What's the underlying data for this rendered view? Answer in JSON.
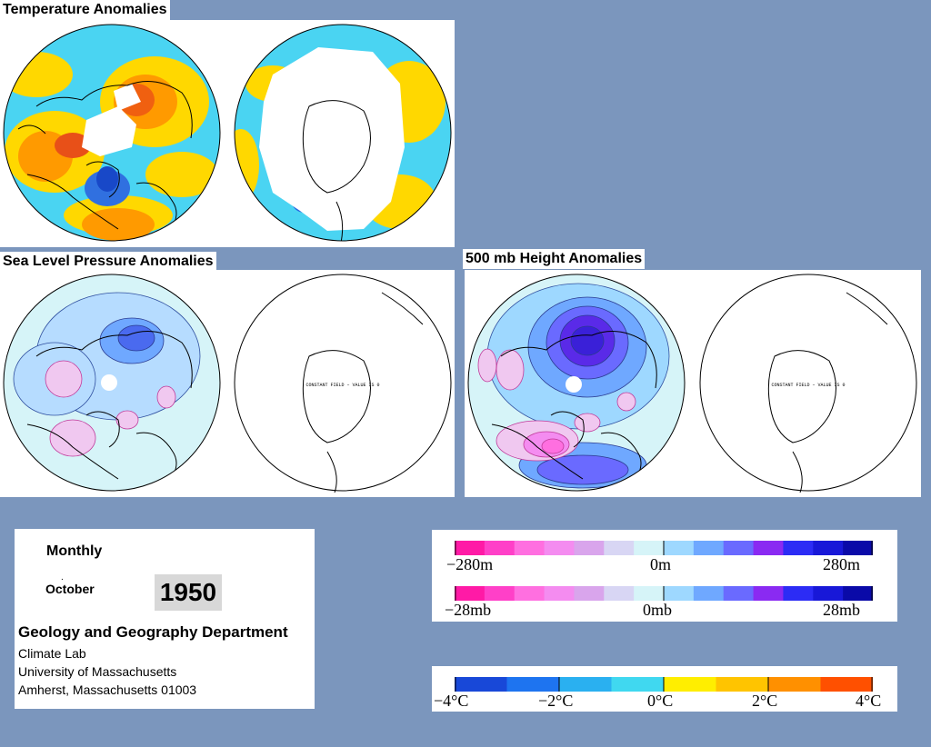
{
  "sections": {
    "temperature": "Temperature Anomalies",
    "slp": "Sea Level Pressure Anomalies",
    "height": "500 mb Height Anomalies"
  },
  "maps": {
    "constant_field_note": "CONSTANT FIELD – VALUE IS 0"
  },
  "info": {
    "period": "Monthly",
    "month": "October",
    "year": "1950",
    "department": "Geology and Geography Department",
    "lab": "Climate Lab",
    "university": "University of Massachusetts",
    "address": "Amherst, Massachusetts 01003"
  },
  "legend_height": {
    "colors": [
      "#ff1aa6",
      "#ff40c8",
      "#ff6fe0",
      "#f48cf0",
      "#d9a5ec",
      "#d8d6f4",
      "#d6f4f8",
      "#9ed8ff",
      "#6fa8ff",
      "#6a6aff",
      "#8a2af2",
      "#2c2cf5",
      "#1818d8",
      "#0a0aa8"
    ],
    "labels": [
      "−280m",
      "0m",
      "280m"
    ]
  },
  "legend_pressure": {
    "colors": [
      "#ff1aa6",
      "#ff40c8",
      "#ff6fe0",
      "#f48cf0",
      "#d9a5ec",
      "#d8d6f4",
      "#d6f4f8",
      "#9ed8ff",
      "#6fa8ff",
      "#6a6aff",
      "#8a2af2",
      "#2c2cf5",
      "#1818d8",
      "#0a0aa8"
    ],
    "labels": [
      "−28mb",
      "0mb",
      "28mb"
    ]
  },
  "legend_temperature": {
    "colors": [
      "#1848d8",
      "#1e74f0",
      "#2ab0f0",
      "#40d8f0",
      "#ffee00",
      "#ffc400",
      "#ff9000",
      "#ff5000"
    ],
    "labels": [
      "−4°C",
      "−2°C",
      "0°C",
      "2°C",
      "4°C"
    ]
  }
}
